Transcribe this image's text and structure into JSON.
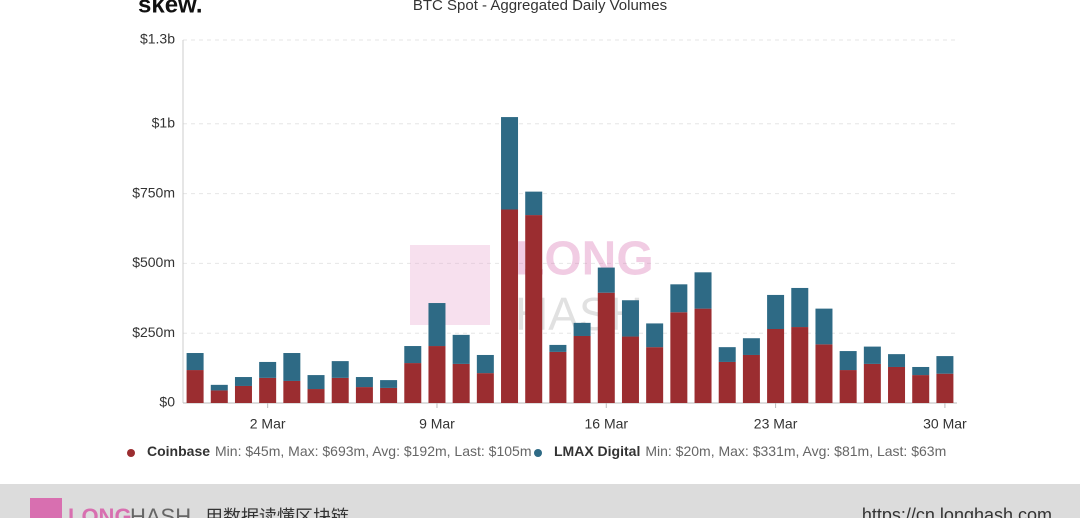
{
  "chart_data": {
    "type": "stacked_bar",
    "logo": "skew.",
    "title": "BTC Spot - Aggregated Daily Volumes",
    "categories": [
      null,
      null,
      null,
      "2 Mar",
      null,
      null,
      null,
      null,
      null,
      null,
      "9 Mar",
      null,
      null,
      null,
      null,
      null,
      null,
      "16 Mar",
      null,
      null,
      null,
      null,
      null,
      null,
      "23 Mar",
      null,
      null,
      null,
      null,
      null,
      null,
      "30 Mar"
    ],
    "series": [
      {
        "name": "Coinbase",
        "color": "#9b2d30",
        "legend_stats": "Min: $45m, Max: $693m, Avg: $192m, Last: $105m",
        "values": [
          118,
          45,
          61,
          90,
          79,
          50,
          90,
          57,
          54,
          143,
          204,
          140,
          107,
          693,
          673,
          183,
          240,
          395,
          238,
          200,
          325,
          338,
          147,
          172,
          265,
          272,
          210,
          118,
          140,
          129,
          100,
          105
        ]
      },
      {
        "name": "LMAX Digital",
        "color": "#2e6a85",
        "legend_stats": "Min: $20m, Max: $331m, Avg: $81m, Last: $63m",
        "values": [
          61,
          20,
          32,
          57,
          100,
          50,
          60,
          36,
          28,
          61,
          154,
          104,
          65,
          331,
          84,
          25,
          47,
          90,
          130,
          85,
          100,
          130,
          53,
          60,
          122,
          140,
          128,
          68,
          62,
          46,
          29,
          63
        ]
      }
    ],
    "ylim": [
      0,
      1300
    ],
    "yticks": [
      {
        "value": 0,
        "label": "$0"
      },
      {
        "value": 250,
        "label": "$250m"
      },
      {
        "value": 500,
        "label": "$500m"
      },
      {
        "value": 750,
        "label": "$750m"
      },
      {
        "value": 1000,
        "label": "$1b"
      },
      {
        "value": 1300,
        "label": "$1.3b"
      }
    ],
    "grid": true,
    "watermark": [
      "LONG",
      "HASH"
    ]
  },
  "footer": {
    "brand_1": "LONG",
    "brand_2": "HASH",
    "slogan": "用数据读懂区块链",
    "url": "https://cn.longhash.com"
  }
}
